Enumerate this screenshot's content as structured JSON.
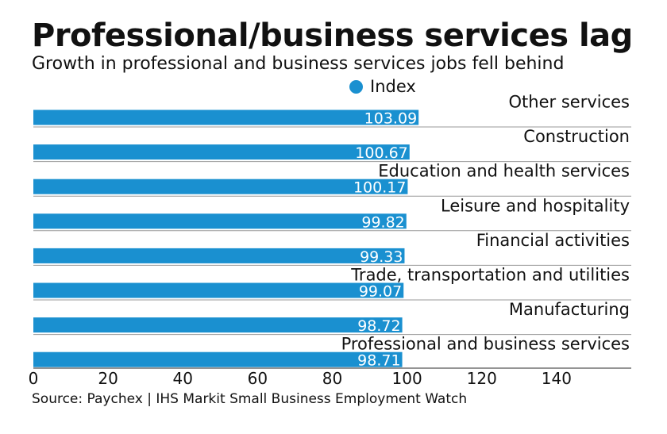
{
  "title": "Professional/business services lag",
  "subtitle": "Growth in professional and business services jobs fell behind",
  "source": "Source: Paychex | IHS Markit Small Business Employment Watch",
  "colors": {
    "bar": "#1a90d0",
    "divider": "#9a9a9a",
    "axis": "#555555"
  },
  "chart_data": {
    "type": "bar",
    "orientation": "horizontal",
    "categories": [
      "Other services",
      "Construction",
      "Education and health services",
      "Leisure and hospitality",
      "Financial activities",
      "Trade, transportation and utilities",
      "Manufacturing",
      "Professional and business services"
    ],
    "series": [
      {
        "name": "Index",
        "values": [
          103.09,
          100.67,
          100.17,
          99.82,
          99.33,
          99.07,
          98.72,
          98.71
        ]
      }
    ],
    "value_labels": [
      "103.09",
      "100.67",
      "100.17",
      "99.82",
      "99.33",
      "99.07",
      "98.72",
      "98.71"
    ],
    "xlim": [
      0,
      160
    ],
    "xticks": [
      0,
      20,
      40,
      60,
      80,
      100,
      120,
      140
    ],
    "legend": "top",
    "grid": false
  }
}
